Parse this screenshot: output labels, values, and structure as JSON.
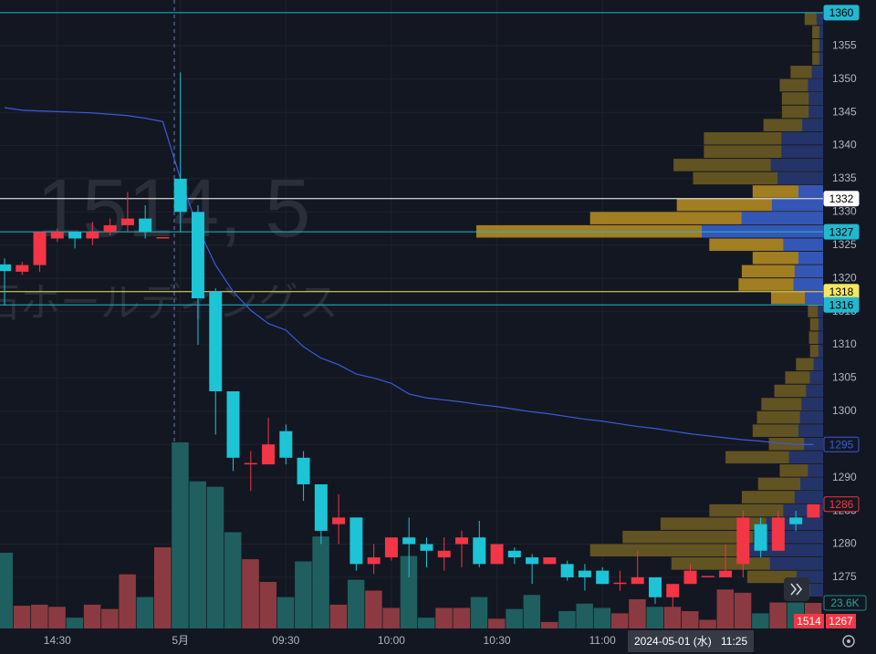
{
  "chart_data": {
    "type": "candlestick",
    "watermark": [
      "1514, 5",
      "石ホールディングス"
    ],
    "categories": [
      null,
      null,
      null,
      "14:30",
      null,
      null,
      null,
      null,
      null,
      null,
      "5月",
      null,
      null,
      null,
      null,
      null,
      "09:30",
      null,
      null,
      null,
      null,
      null,
      "10:00",
      null,
      null,
      null,
      null,
      null,
      "10:30",
      null,
      null,
      null,
      null,
      null,
      "11:00",
      null,
      null,
      null,
      null,
      null,
      null,
      null,
      null,
      null,
      null,
      null,
      null
    ],
    "open": [
      1322.1,
      1321,
      1322,
      1326,
      1327,
      1326,
      1327,
      1328,
      1329,
      1326,
      1335,
      1330,
      1318,
      1303,
      1292,
      1292,
      1297,
      1293,
      1289,
      1283,
      1284,
      1277,
      1278,
      1281,
      1280,
      1278,
      1280,
      1281,
      1277,
      1279,
      1278,
      1277,
      1277,
      1276,
      1276,
      1274,
      1274,
      1275,
      1272,
      1274,
      1275,
      1275,
      1277,
      1283,
      1279,
      1284,
      1284
    ],
    "high": [
      1323,
      1322.5,
      1327,
      1327.5,
      1327,
      1328.5,
      1329,
      1333,
      1331,
      1326.2,
      1351,
      1331,
      1318.5,
      1303,
      1294,
      1299,
      1298,
      1294,
      1289,
      1287.5,
      1284,
      1280,
      1281,
      1284,
      1281,
      1281,
      1282,
      1283.5,
      1280,
      1279.5,
      1278.5,
      1278,
      1277.5,
      1277,
      1276.5,
      1276,
      1279,
      1275,
      1274,
      1277,
      1275.2,
      1280,
      1285,
      1284,
      1285,
      1285,
      1286
    ],
    "low": [
      1316,
      1320.5,
      1321,
      1325.5,
      1324.5,
      1325,
      1326.5,
      1327,
      1326,
      1326,
      1327,
      1310,
      1296.5,
      1291,
      1288,
      1292,
      1292,
      1286.5,
      1280,
      1280,
      1276,
      1275.5,
      1277.5,
      1275,
      1276.5,
      1276,
      1276.5,
      1276.5,
      1277,
      1277,
      1274,
      1277,
      1274.5,
      1273,
      1274,
      1273,
      1274,
      1271,
      1270.5,
      1274,
      1275,
      1275,
      1275,
      1278,
      1279,
      1282,
      1284
    ],
    "close": [
      1321.1,
      1322,
      1327,
      1327,
      1326,
      1327,
      1328,
      1329,
      1327,
      1326.2,
      1330,
      1317,
      1303,
      1293,
      1292.2,
      1295,
      1293,
      1289,
      1282,
      1284,
      1277,
      1278,
      1281,
      1280,
      1279,
      1279,
      1281,
      1277,
      1280,
      1278,
      1277,
      1278,
      1275,
      1275,
      1274,
      1274.2,
      1275,
      1272,
      1274,
      1276,
      1275.2,
      1276,
      1284,
      1279,
      1284,
      1283,
      1286
    ],
    "volume": [
      70,
      21,
      22,
      20,
      10,
      22,
      18,
      50,
      29,
      75,
      172,
      136,
      131,
      89,
      64,
      43,
      29,
      62,
      85,
      22,
      45,
      35,
      19,
      67,
      10,
      19,
      19,
      29,
      9,
      18,
      31,
      6,
      16,
      23,
      19,
      14,
      27,
      20,
      20,
      16,
      8,
      36,
      33,
      14,
      24,
      24,
      23.6
    ],
    "volume_label": "23.6K",
    "vwap": [
      1345.7,
      1345.3,
      1345.2,
      1345.1,
      1345,
      1344.9,
      1344.7,
      1344.5,
      1344.1,
      1343.6,
      1335,
      1327.6,
      1322,
      1318,
      1315.2,
      1313.2,
      1312.2,
      1309.7,
      1308,
      1307,
      1305.6,
      1305,
      1304.2,
      1302.6,
      1302,
      1301.7,
      1301.4,
      1301,
      1300.7,
      1300.3,
      1299.9,
      1299.6,
      1299.2,
      1298.8,
      1298.5,
      1298.1,
      1297.7,
      1297.4,
      1297,
      1296.6,
      1296.3,
      1296,
      1295.7,
      1295.5,
      1295.2,
      1295,
      1295
    ],
    "vwap_color": "#3b5bdb",
    "volume_profile": {
      "prices": [
        1359,
        1357,
        1355,
        1353,
        1351,
        1349,
        1347,
        1345,
        1343,
        1341,
        1339,
        1337,
        1335,
        1333,
        1331,
        1329,
        1327,
        1325,
        1323,
        1321,
        1319,
        1317,
        1315,
        1313,
        1311,
        1309,
        1307,
        1305,
        1303,
        1301,
        1299,
        1297,
        1295,
        1293,
        1291,
        1289,
        1287,
        1285,
        1283,
        1281,
        1279,
        1277,
        1275,
        1273
      ],
      "values": [
        17,
        10,
        10,
        10,
        30,
        40,
        38,
        38,
        55,
        110,
        110,
        138,
        120,
        65,
        135,
        215,
        320,
        105,
        65,
        75,
        78,
        48,
        14,
        12,
        13,
        12,
        25,
        35,
        45,
        57,
        61,
        65,
        50,
        90,
        40,
        60,
        75,
        105,
        150,
        185,
        215,
        140,
        70,
        35
      ]
    },
    "price_lines": [
      {
        "value": 1360,
        "color": "#22b8cf"
      },
      {
        "value": 1332,
        "color": "#ffffff"
      },
      {
        "value": 1327,
        "color": "#22b8cf"
      },
      {
        "value": 1318,
        "color": "#f5e663"
      },
      {
        "value": 1316,
        "color": "#22b8cf"
      }
    ],
    "up_color": "#f23645",
    "down_color": "#1cc4d6",
    "ylim": [
      1267.3,
      1361.9
    ],
    "yticks": [
      1275,
      1280,
      1285,
      1290,
      1295,
      1300,
      1305,
      1310,
      1315,
      1320,
      1325,
      1330,
      1335,
      1340,
      1345,
      1350,
      1355
    ],
    "grid": true,
    "crosshair": {
      "date": "2024-05-01 (水)",
      "time": "11:25"
    },
    "badges": [
      "1514",
      "1267"
    ]
  }
}
